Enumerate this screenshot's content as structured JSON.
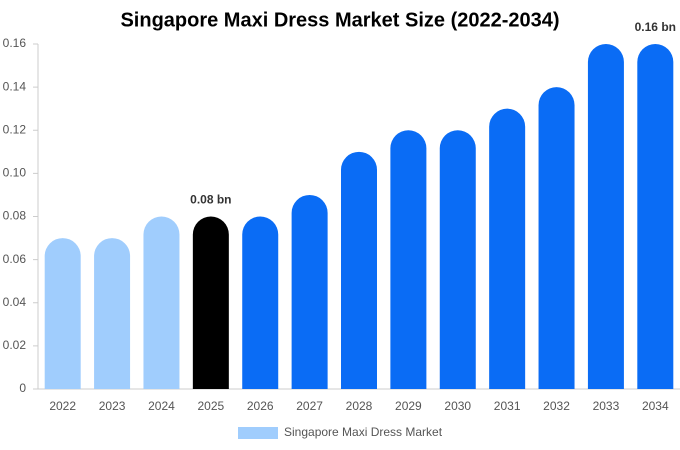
{
  "chart_data": {
    "type": "bar",
    "title": "Singapore Maxi Dress Market Size (2022-2034)",
    "categories": [
      "2022",
      "2023",
      "2024",
      "2025",
      "2026",
      "2027",
      "2028",
      "2029",
      "2030",
      "2031",
      "2032",
      "2033",
      "2034"
    ],
    "series": [
      {
        "name": "Singapore Maxi Dress Market",
        "color": "#a0cdfd",
        "values": [
          0.07,
          0.07,
          0.08,
          0.08,
          0.08,
          0.09,
          0.11,
          0.12,
          0.12,
          0.13,
          0.14,
          0.16,
          0.16
        ],
        "value_labels": [
          null,
          null,
          null,
          "0.08 bn",
          null,
          null,
          null,
          null,
          null,
          null,
          null,
          null,
          "0.16 bn"
        ],
        "bar_colors": [
          "#a0cdfd",
          "#a0cdfd",
          "#a0cdfd",
          "#000000",
          "#0a6cf5",
          "#0a6cf5",
          "#0a6cf5",
          "#0a6cf5",
          "#0a6cf5",
          "#0a6cf5",
          "#0a6cf5",
          "#0a6cf5",
          "#0a6cf5"
        ]
      }
    ],
    "ylim": [
      0,
      0.16
    ],
    "yticks": [
      0,
      0.02,
      0.04,
      0.06,
      0.08,
      {
        "value": 0.1,
        "label": "0.10"
      },
      0.12,
      0.14,
      0.16
    ],
    "grid": false
  }
}
